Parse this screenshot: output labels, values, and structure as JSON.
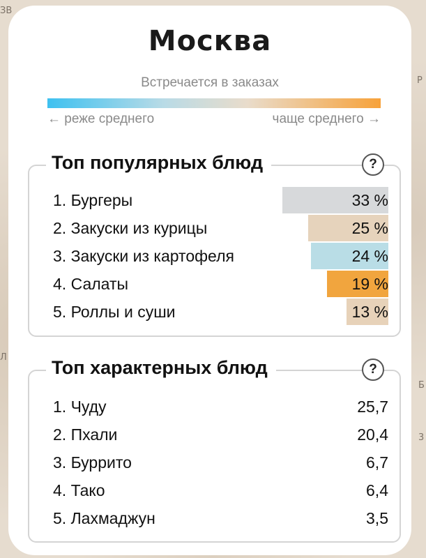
{
  "background": {
    "map_labels": [
      "ЗВ",
      "Р",
      "Л",
      "3",
      "Б"
    ]
  },
  "city": "Москва",
  "legend": {
    "caption": "Встречается в заказах",
    "left": "← реже среднего",
    "right": "чаще среднего →",
    "colors": {
      "less": "#3ec1f0",
      "neutral": "#e9dccb",
      "more": "#f7a23a"
    }
  },
  "popular": {
    "title": "Топ популярных блюд",
    "help": "?",
    "items": [
      {
        "label": "1. Бургеры",
        "value": "33 %",
        "share": 33,
        "color": "#d7d9db"
      },
      {
        "label": "2. Закуски из курицы",
        "value": "25 %",
        "share": 25,
        "color": "#e6d3bc"
      },
      {
        "label": "3. Закуски из картофеля",
        "value": "24 %",
        "share": 24,
        "color": "#b9dde6"
      },
      {
        "label": "4. Салаты",
        "value": "19 %",
        "share": 19,
        "color": "#f1a53e"
      },
      {
        "label": "5. Роллы и суши",
        "value": "13 %",
        "share": 13,
        "color": "#e7d2b9"
      }
    ]
  },
  "characteristic": {
    "title": "Топ характерных блюд",
    "help": "?",
    "items": [
      {
        "label": "1. Чуду",
        "value": "25,7"
      },
      {
        "label": "2. Пхали",
        "value": "20,4"
      },
      {
        "label": "3. Буррито",
        "value": "6,7"
      },
      {
        "label": "4. Тако",
        "value": "6,4"
      },
      {
        "label": "5. Лахмаджун",
        "value": "3,5"
      }
    ]
  }
}
